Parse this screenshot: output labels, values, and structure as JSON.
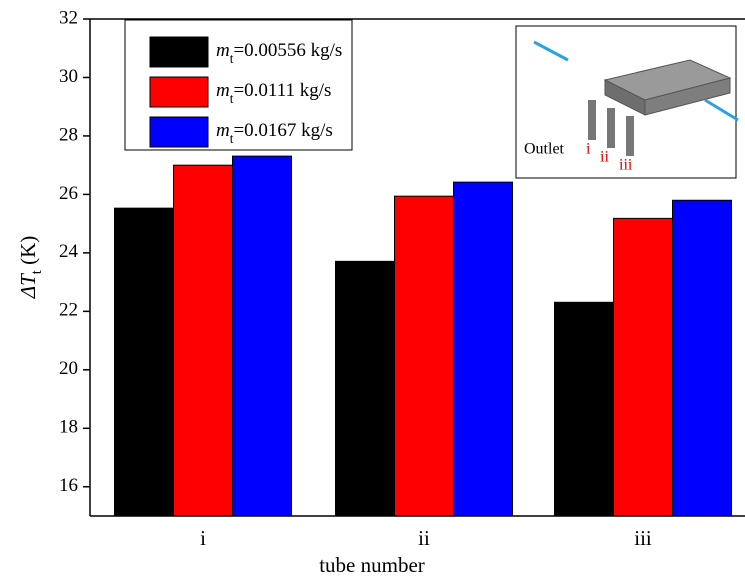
{
  "chart_data": {
    "type": "bar",
    "x_label": "tube number",
    "y_label": "ΔTt (K)",
    "categories": [
      "i",
      "ii",
      "iii"
    ],
    "series": [
      {
        "name": "mt=0.00556 kg/s",
        "color": "#000000",
        "values": [
          25.53,
          23.71,
          22.31
        ]
      },
      {
        "name": "mt=0.0111 kg/s",
        "color": "#ff0000",
        "values": [
          27.0,
          25.94,
          25.18
        ]
      },
      {
        "name": "mt=0.0167 kg/s",
        "color": "#0000ff",
        "values": [
          27.31,
          26.42,
          25.8
        ]
      }
    ],
    "ylim": [
      15,
      32
    ],
    "yticks": [
      16,
      18,
      20,
      22,
      24,
      26,
      28,
      30,
      32
    ],
    "legend": "upper left",
    "inset": {
      "outlet_label": "Outlet",
      "tube_labels": [
        "i",
        "ii",
        "iii"
      ]
    }
  }
}
